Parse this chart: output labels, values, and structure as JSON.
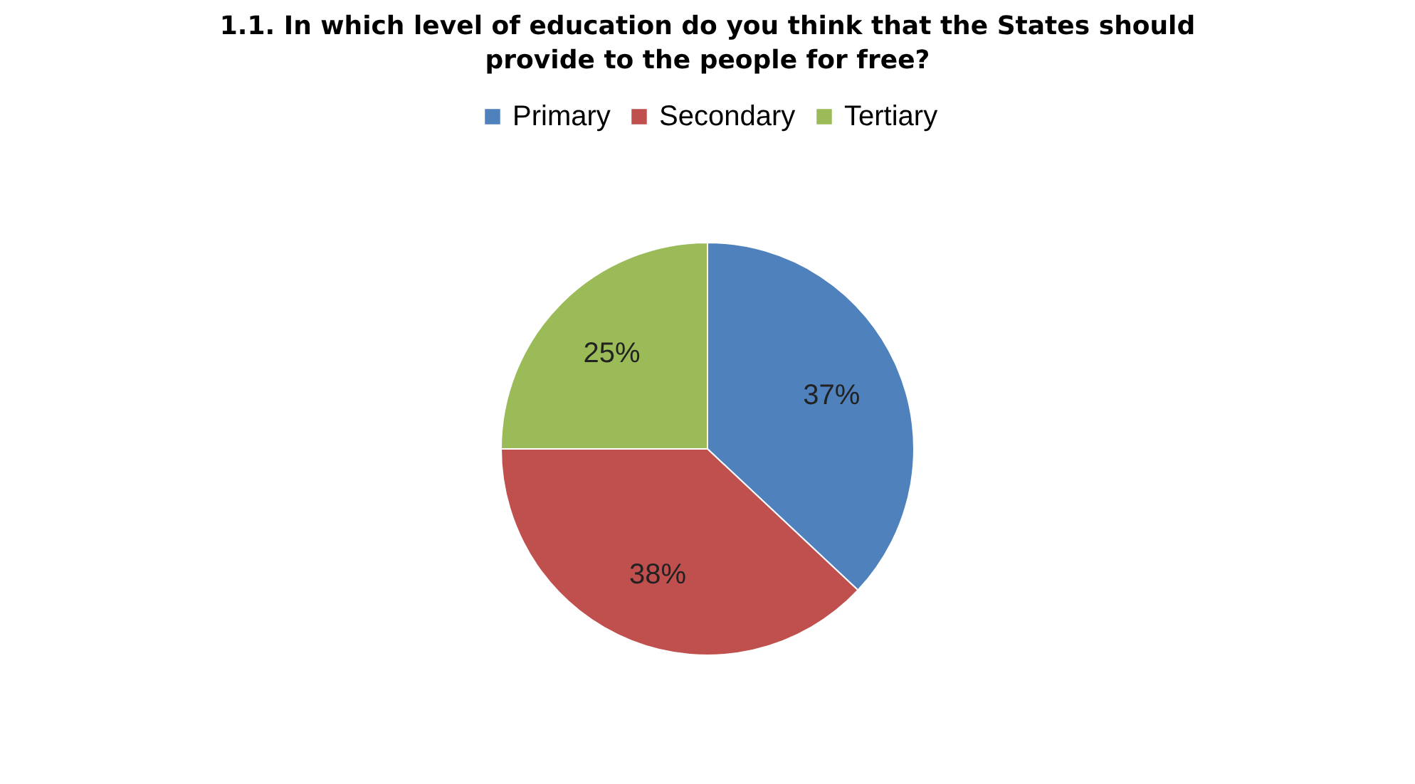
{
  "chart_data": {
    "type": "pie",
    "title": "1.1. In which level of education do you think that the States should provide to the people for free?",
    "categories": [
      "Primary",
      "Secondary",
      "Tertiary"
    ],
    "values": [
      37,
      38,
      25
    ],
    "colors": [
      "#4f81bd",
      "#c0504d",
      "#9bbb59"
    ],
    "value_labels": [
      "37%",
      "38%",
      "25%"
    ],
    "legend": "top"
  }
}
